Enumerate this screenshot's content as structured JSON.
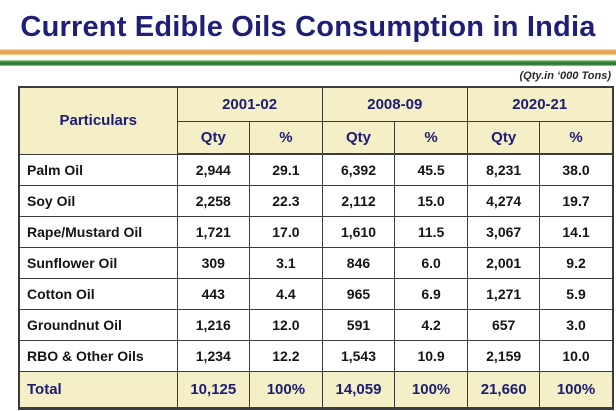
{
  "slide": {
    "title": "Current Edible Oils Consumption in India",
    "units_note": "(Qty.in ‘000 Tons)",
    "colors": {
      "title_navy": "#1f1f78",
      "header_text_navy": "#1c1c74",
      "header_cream": "#f5efc8",
      "saffron_stripe": "#e8a44c",
      "green_stripe": "#2e7d32",
      "table_border": "#3c3c3c",
      "data_text": "#141414"
    }
  },
  "chart_data": {
    "type": "table",
    "title": "Current Edible Oils Consumption in India",
    "units": "Qty. in '000 Tons",
    "row_header": "Particulars",
    "column_groups": [
      "2001-02",
      "2008-09",
      "2020-21"
    ],
    "sub_columns": [
      "Qty",
      "%"
    ],
    "rows": [
      {
        "label": "Palm Oil",
        "values": [
          "2,944",
          "29.1",
          "6,392",
          "45.5",
          "8,231",
          "38.0"
        ]
      },
      {
        "label": "Soy Oil",
        "values": [
          "2,258",
          "22.3",
          "2,112",
          "15.0",
          "4,274",
          "19.7"
        ]
      },
      {
        "label": "Rape/Mustard Oil",
        "values": [
          "1,721",
          "17.0",
          "1,610",
          "11.5",
          "3,067",
          "14.1"
        ]
      },
      {
        "label": "Sunflower Oil",
        "values": [
          "309",
          "3.1",
          "846",
          "6.0",
          "2,001",
          "9.2"
        ]
      },
      {
        "label": "Cotton Oil",
        "values": [
          "443",
          "4.4",
          "965",
          "6.9",
          "1,271",
          "5.9"
        ]
      },
      {
        "label": "Groundnut Oil",
        "values": [
          "1,216",
          "12.0",
          "591",
          "4.2",
          "657",
          "3.0"
        ]
      },
      {
        "label": "RBO & Other Oils",
        "values": [
          "1,234",
          "12.2",
          "1,543",
          "10.9",
          "2,159",
          "10.0"
        ]
      }
    ],
    "total_row": {
      "label": "Total",
      "values": [
        "10,125",
        "100%",
        "14,059",
        "100%",
        "21,660",
        "100%"
      ]
    }
  }
}
